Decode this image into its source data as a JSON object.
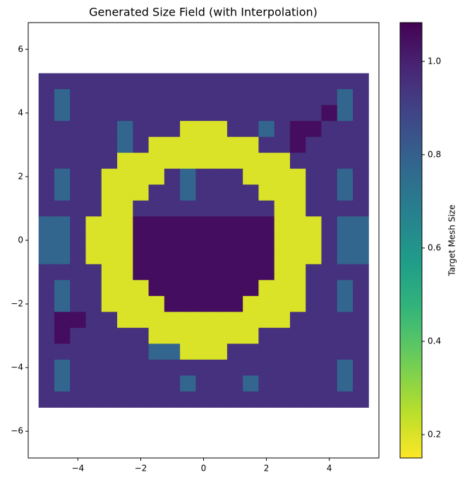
{
  "chart_data": {
    "type": "heatmap",
    "title": "Generated Size Field (with Interpolation)",
    "colorbar_label": "Target Mesh Size",
    "colormap": "viridis_r",
    "x": [
      -5,
      -4.5,
      -4,
      -3.5,
      -3,
      -2.5,
      -2,
      -1.5,
      -1,
      -0.5,
      0,
      0.5,
      1,
      1.5,
      2,
      2.5,
      3,
      3.5,
      4,
      4.5,
      5
    ],
    "y": [
      5,
      4.5,
      4,
      3.5,
      3,
      2.5,
      2,
      1.5,
      1,
      0.5,
      0,
      -0.5,
      -1,
      -1.5,
      -2,
      -2.5,
      -3,
      -3.5,
      -4,
      -4.5,
      -5
    ],
    "z": [
      [
        0.95,
        0.95,
        0.95,
        0.95,
        0.95,
        0.95,
        0.95,
        0.95,
        0.95,
        0.95,
        0.95,
        0.95,
        0.95,
        0.95,
        0.95,
        0.95,
        0.95,
        0.95,
        0.95,
        0.95,
        0.95
      ],
      [
        0.95,
        0.78,
        0.95,
        0.95,
        0.95,
        0.95,
        0.95,
        0.95,
        0.95,
        0.95,
        0.95,
        0.95,
        0.95,
        0.95,
        0.95,
        0.95,
        0.95,
        0.95,
        0.95,
        0.78,
        0.95
      ],
      [
        0.95,
        0.78,
        0.95,
        0.95,
        0.95,
        0.95,
        0.95,
        0.95,
        0.95,
        0.95,
        0.95,
        0.95,
        0.95,
        0.95,
        0.95,
        0.95,
        0.95,
        0.95,
        1.05,
        0.78,
        0.95
      ],
      [
        0.95,
        0.95,
        0.95,
        0.95,
        0.95,
        0.78,
        0.95,
        0.95,
        0.95,
        0.2,
        0.2,
        0.2,
        0.95,
        0.95,
        0.78,
        0.95,
        1.05,
        1.05,
        0.95,
        0.95,
        0.95
      ],
      [
        0.95,
        0.95,
        0.95,
        0.95,
        0.95,
        0.78,
        0.95,
        0.2,
        0.2,
        0.2,
        0.2,
        0.2,
        0.2,
        0.2,
        0.95,
        0.95,
        1.05,
        0.95,
        0.95,
        0.95,
        0.95
      ],
      [
        0.95,
        0.95,
        0.95,
        0.95,
        0.95,
        0.2,
        0.2,
        0.2,
        0.2,
        0.2,
        0.2,
        0.2,
        0.2,
        0.2,
        0.2,
        0.2,
        0.95,
        0.95,
        0.95,
        0.95,
        0.95
      ],
      [
        0.95,
        0.78,
        0.95,
        0.95,
        0.2,
        0.2,
        0.2,
        0.2,
        0.95,
        0.78,
        0.95,
        0.95,
        0.95,
        0.2,
        0.2,
        0.2,
        0.2,
        0.95,
        0.95,
        0.78,
        0.95
      ],
      [
        0.95,
        0.78,
        0.95,
        0.95,
        0.2,
        0.2,
        0.2,
        0.95,
        0.95,
        0.78,
        0.95,
        0.95,
        0.95,
        0.95,
        0.2,
        0.2,
        0.2,
        0.95,
        0.95,
        0.78,
        0.95
      ],
      [
        0.95,
        0.95,
        0.95,
        0.95,
        0.2,
        0.2,
        0.95,
        0.95,
        0.95,
        0.95,
        0.95,
        0.95,
        0.95,
        0.95,
        0.95,
        0.2,
        0.2,
        0.95,
        0.95,
        0.95,
        0.95
      ],
      [
        0.78,
        0.78,
        0.95,
        0.2,
        0.2,
        0.2,
        1.05,
        1.05,
        1.05,
        1.05,
        1.05,
        1.05,
        1.05,
        1.05,
        1.05,
        0.2,
        0.2,
        0.2,
        0.95,
        0.78,
        0.78
      ],
      [
        0.78,
        0.78,
        0.95,
        0.2,
        0.2,
        0.2,
        1.05,
        1.05,
        1.05,
        1.05,
        1.05,
        1.05,
        1.05,
        1.05,
        1.05,
        0.2,
        0.2,
        0.2,
        0.95,
        0.78,
        0.78
      ],
      [
        0.78,
        0.78,
        0.95,
        0.2,
        0.2,
        0.2,
        1.05,
        1.05,
        1.05,
        1.05,
        1.05,
        1.05,
        1.05,
        1.05,
        1.05,
        0.2,
        0.2,
        0.2,
        0.95,
        0.78,
        0.78
      ],
      [
        0.95,
        0.95,
        0.95,
        0.95,
        0.2,
        0.2,
        1.05,
        1.05,
        1.05,
        1.05,
        1.05,
        1.05,
        1.05,
        1.05,
        1.05,
        0.2,
        0.2,
        0.95,
        0.95,
        0.95,
        0.95
      ],
      [
        0.95,
        0.78,
        0.95,
        0.95,
        0.2,
        0.2,
        0.2,
        1.05,
        1.05,
        1.05,
        1.05,
        1.05,
        1.05,
        1.05,
        0.2,
        0.2,
        0.2,
        0.95,
        0.95,
        0.78,
        0.95
      ],
      [
        0.95,
        0.78,
        0.95,
        0.95,
        0.2,
        0.2,
        0.2,
        0.2,
        1.05,
        1.05,
        1.05,
        1.05,
        1.05,
        0.2,
        0.2,
        0.2,
        0.2,
        0.95,
        0.95,
        0.78,
        0.95
      ],
      [
        0.95,
        1.05,
        1.05,
        0.95,
        0.95,
        0.2,
        0.2,
        0.2,
        0.2,
        0.2,
        0.2,
        0.2,
        0.2,
        0.2,
        0.2,
        0.2,
        0.95,
        0.95,
        0.95,
        0.95,
        0.95
      ],
      [
        0.95,
        1.05,
        0.95,
        0.95,
        0.95,
        0.95,
        0.95,
        0.2,
        0.2,
        0.2,
        0.2,
        0.2,
        0.2,
        0.2,
        0.95,
        0.95,
        0.95,
        0.95,
        0.95,
        0.95,
        0.95
      ],
      [
        0.95,
        0.95,
        0.95,
        0.95,
        0.95,
        0.95,
        0.95,
        0.78,
        0.78,
        0.2,
        0.2,
        0.2,
        0.95,
        0.95,
        0.95,
        0.95,
        0.95,
        0.95,
        0.95,
        0.95,
        0.95
      ],
      [
        0.95,
        0.78,
        0.95,
        0.95,
        0.95,
        0.95,
        0.95,
        0.95,
        0.95,
        0.95,
        0.95,
        0.95,
        0.95,
        0.95,
        0.95,
        0.95,
        0.95,
        0.95,
        0.95,
        0.78,
        0.95
      ],
      [
        0.95,
        0.78,
        0.95,
        0.95,
        0.95,
        0.95,
        0.95,
        0.95,
        0.95,
        0.78,
        0.95,
        0.95,
        0.95,
        0.78,
        0.95,
        0.95,
        0.95,
        0.95,
        0.95,
        0.78,
        0.95
      ],
      [
        0.95,
        0.95,
        0.95,
        0.95,
        0.95,
        0.95,
        0.95,
        0.95,
        0.95,
        0.95,
        0.95,
        0.95,
        0.95,
        0.95,
        0.95,
        0.95,
        0.95,
        0.95,
        0.95,
        0.95,
        0.95
      ]
    ],
    "xlim": [
      -5.58,
      5.58
    ],
    "ylim": [
      -6.84,
      6.84
    ],
    "xticks": [
      {
        "value": -4,
        "label": "−4"
      },
      {
        "value": -2,
        "label": "−2"
      },
      0,
      2,
      4
    ],
    "yticks": [
      {
        "value": -6,
        "label": "−6"
      },
      {
        "value": -4,
        "label": "−4"
      },
      {
        "value": -2,
        "label": "−2"
      },
      0,
      2,
      4,
      6
    ],
    "clim": [
      0.15,
      1.083
    ],
    "cticks": [
      0.2,
      0.4,
      0.6,
      0.8,
      {
        "value": 1.0,
        "label": "1.0"
      }
    ]
  }
}
